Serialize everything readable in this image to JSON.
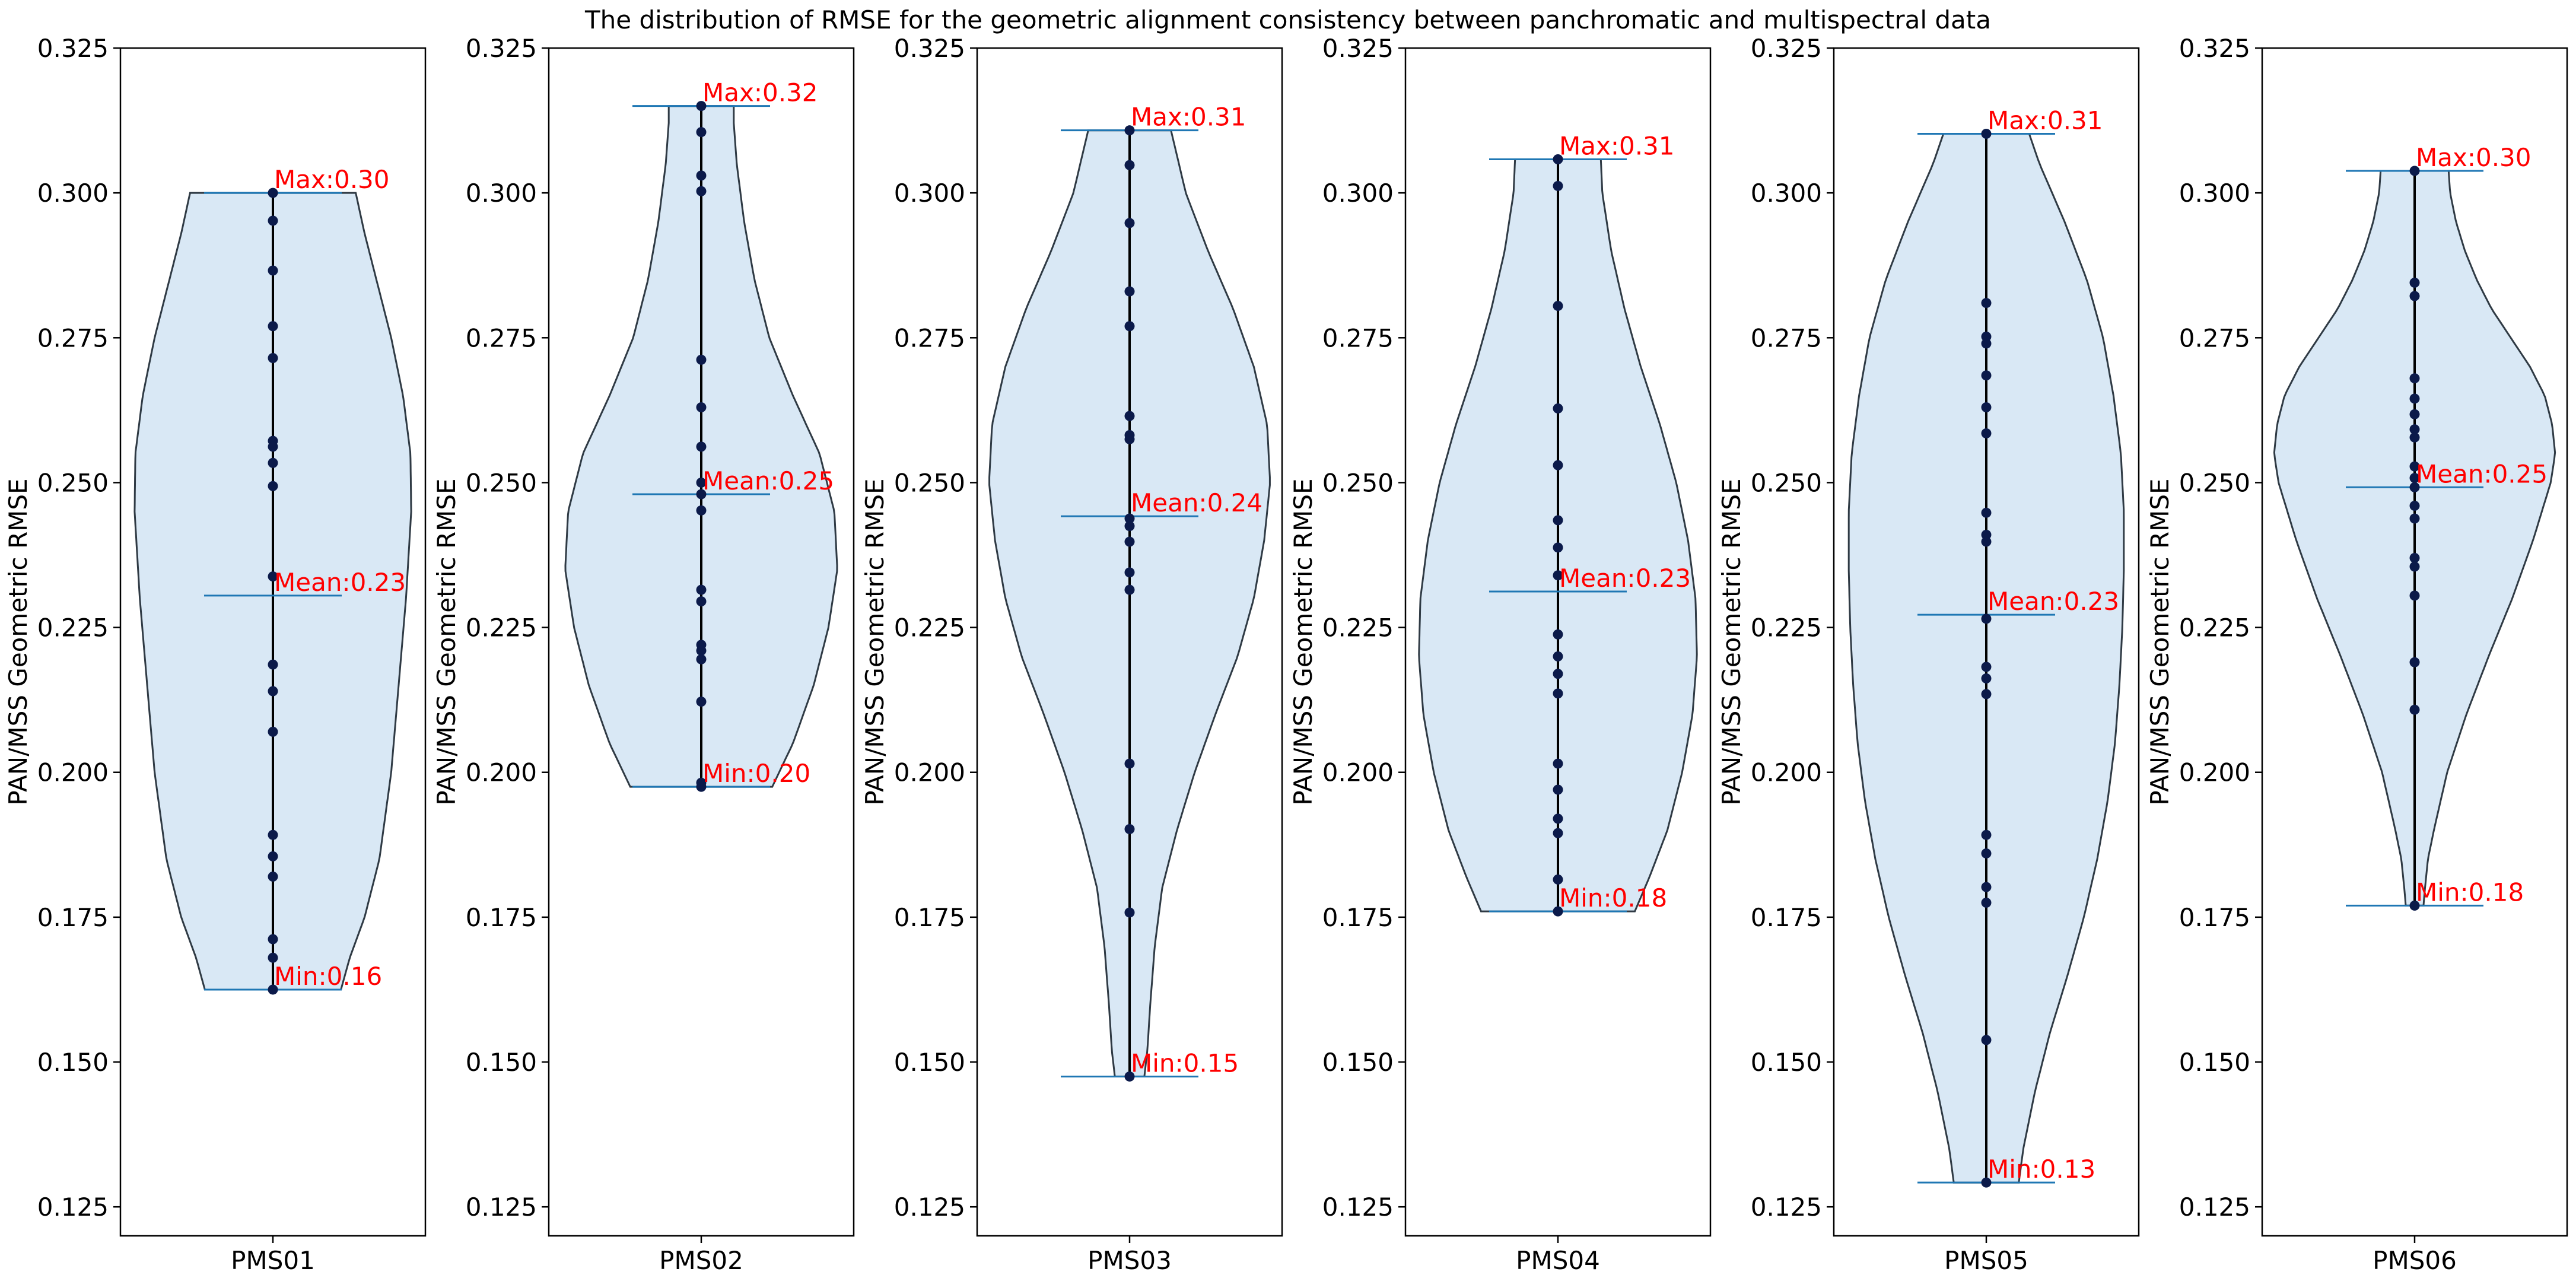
{
  "chart_data": {
    "type": "violin",
    "title": "The distribution of RMSE for the geometric alignment consistency between panchromatic and multispectral data",
    "ylabel": "PAN/MSS Geometric RMSE",
    "ylim": [
      0.12,
      0.325
    ],
    "yticks": [
      "0.125",
      "0.150",
      "0.175",
      "0.200",
      "0.225",
      "0.250",
      "0.275",
      "0.300",
      "0.325"
    ],
    "colors": {
      "fill": "#d9e8f5",
      "outline": "#2f3a44",
      "stats_line": "#1f77b4",
      "whisker": "#000000",
      "point": "#0b1a4a",
      "annotation": "#ff0000"
    },
    "panels": [
      {
        "name": "PMS01",
        "min": 0.1625,
        "mean": 0.2305,
        "max": 0.3,
        "min_label": "Min:0.16",
        "mean_label": "Mean:0.23",
        "max_label": "Max:0.30",
        "points": [
          0.3,
          0.2952,
          0.2866,
          0.277,
          0.2715,
          0.2572,
          0.2562,
          0.2534,
          0.2494,
          0.2338,
          0.2186,
          0.214,
          0.207,
          0.1892,
          0.1855,
          0.182,
          0.1712,
          0.168,
          0.1625
        ],
        "profile": [
          [
            0.1625,
            0.46
          ],
          [
            0.168,
            0.52
          ],
          [
            0.175,
            0.62
          ],
          [
            0.185,
            0.72
          ],
          [
            0.2,
            0.8
          ],
          [
            0.215,
            0.85
          ],
          [
            0.23,
            0.9
          ],
          [
            0.245,
            0.935
          ],
          [
            0.255,
            0.93
          ],
          [
            0.265,
            0.88
          ],
          [
            0.275,
            0.8
          ],
          [
            0.285,
            0.7
          ],
          [
            0.293,
            0.62
          ],
          [
            0.3,
            0.56
          ]
        ]
      },
      {
        "name": "PMS02",
        "min": 0.1975,
        "mean": 0.248,
        "max": 0.315,
        "min_label": "Min:0.20",
        "mean_label": "Mean:0.25",
        "max_label": "Max:0.32",
        "points": [
          0.315,
          0.3105,
          0.303,
          0.3003,
          0.2712,
          0.263,
          0.2562,
          0.25,
          0.248,
          0.2452,
          0.2315,
          0.2295,
          0.222,
          0.221,
          0.2195,
          0.2122,
          0.1982,
          0.1975
        ],
        "profile": [
          [
            0.1975,
            0.48
          ],
          [
            0.205,
            0.62
          ],
          [
            0.215,
            0.76
          ],
          [
            0.225,
            0.86
          ],
          [
            0.235,
            0.92
          ],
          [
            0.245,
            0.9
          ],
          [
            0.255,
            0.8
          ],
          [
            0.265,
            0.62
          ],
          [
            0.275,
            0.46
          ],
          [
            0.285,
            0.36
          ],
          [
            0.295,
            0.29
          ],
          [
            0.305,
            0.24
          ],
          [
            0.312,
            0.22
          ],
          [
            0.315,
            0.22
          ]
        ]
      },
      {
        "name": "PMS03",
        "min": 0.1475,
        "mean": 0.2442,
        "max": 0.3108,
        "min_label": "Min:0.15",
        "mean_label": "Mean:0.24",
        "max_label": "Max:0.31",
        "points": [
          0.3108,
          0.3048,
          0.2948,
          0.283,
          0.277,
          0.2615,
          0.2582,
          0.2575,
          0.2438,
          0.2425,
          0.2398,
          0.2345,
          0.2315,
          0.2015,
          0.1902,
          0.1758,
          0.1475
        ],
        "profile": [
          [
            0.1475,
            0.1
          ],
          [
            0.152,
            0.12
          ],
          [
            0.16,
            0.14
          ],
          [
            0.17,
            0.17
          ],
          [
            0.18,
            0.22
          ],
          [
            0.19,
            0.32
          ],
          [
            0.2,
            0.44
          ],
          [
            0.21,
            0.58
          ],
          [
            0.22,
            0.73
          ],
          [
            0.23,
            0.84
          ],
          [
            0.24,
            0.91
          ],
          [
            0.25,
            0.95
          ],
          [
            0.26,
            0.93
          ],
          [
            0.27,
            0.84
          ],
          [
            0.28,
            0.7
          ],
          [
            0.29,
            0.53
          ],
          [
            0.3,
            0.38
          ],
          [
            0.3108,
            0.28
          ]
        ]
      },
      {
        "name": "PMS04",
        "min": 0.176,
        "mean": 0.2312,
        "max": 0.3058,
        "min_label": "Min:0.18",
        "mean_label": "Mean:0.23",
        "max_label": "Max:0.31",
        "points": [
          0.3058,
          0.3012,
          0.2805,
          0.2628,
          0.253,
          0.2435,
          0.2388,
          0.234,
          0.2238,
          0.22,
          0.217,
          0.2136,
          0.2015,
          0.197,
          0.192,
          0.1895,
          0.1815,
          0.176
        ],
        "profile": [
          [
            0.176,
            0.52
          ],
          [
            0.182,
            0.62
          ],
          [
            0.19,
            0.74
          ],
          [
            0.2,
            0.84
          ],
          [
            0.21,
            0.91
          ],
          [
            0.22,
            0.94
          ],
          [
            0.23,
            0.93
          ],
          [
            0.24,
            0.88
          ],
          [
            0.25,
            0.8
          ],
          [
            0.26,
            0.69
          ],
          [
            0.27,
            0.56
          ],
          [
            0.28,
            0.45
          ],
          [
            0.29,
            0.36
          ],
          [
            0.3,
            0.3
          ],
          [
            0.3058,
            0.29
          ]
        ]
      },
      {
        "name": "PMS05",
        "min": 0.1292,
        "mean": 0.2272,
        "max": 0.3102,
        "min_label": "Min:0.13",
        "mean_label": "Mean:0.23",
        "max_label": "Max:0.31",
        "points": [
          0.3102,
          0.281,
          0.2752,
          0.274,
          0.2685,
          0.263,
          0.2585,
          0.2448,
          0.241,
          0.2398,
          0.2265,
          0.2182,
          0.2162,
          0.2135,
          0.1892,
          0.186,
          0.1802,
          0.1775,
          0.1538,
          0.1292
        ],
        "profile": [
          [
            0.1292,
            0.22
          ],
          [
            0.135,
            0.25
          ],
          [
            0.145,
            0.33
          ],
          [
            0.155,
            0.43
          ],
          [
            0.165,
            0.55
          ],
          [
            0.175,
            0.66
          ],
          [
            0.185,
            0.75
          ],
          [
            0.195,
            0.82
          ],
          [
            0.205,
            0.87
          ],
          [
            0.215,
            0.9
          ],
          [
            0.225,
            0.92
          ],
          [
            0.235,
            0.93
          ],
          [
            0.245,
            0.93
          ],
          [
            0.255,
            0.91
          ],
          [
            0.265,
            0.86
          ],
          [
            0.275,
            0.79
          ],
          [
            0.285,
            0.68
          ],
          [
            0.295,
            0.53
          ],
          [
            0.305,
            0.36
          ],
          [
            0.3102,
            0.29
          ]
        ]
      },
      {
        "name": "PMS06",
        "min": 0.177,
        "mean": 0.2492,
        "max": 0.3038,
        "min_label": "Min:0.18",
        "mean_label": "Mean:0.25",
        "max_label": "Max:0.30",
        "points": [
          0.3038,
          0.2845,
          0.2822,
          0.268,
          0.2645,
          0.2618,
          0.2592,
          0.2578,
          0.2528,
          0.2508,
          0.2492,
          0.246,
          0.2438,
          0.237,
          0.2355,
          0.2305,
          0.219,
          0.2108,
          0.177
        ],
        "profile": [
          [
            0.177,
            0.06
          ],
          [
            0.18,
            0.07
          ],
          [
            0.185,
            0.09
          ],
          [
            0.19,
            0.13
          ],
          [
            0.2,
            0.22
          ],
          [
            0.21,
            0.35
          ],
          [
            0.22,
            0.5
          ],
          [
            0.23,
            0.66
          ],
          [
            0.24,
            0.8
          ],
          [
            0.25,
            0.92
          ],
          [
            0.255,
            0.95
          ],
          [
            0.26,
            0.93
          ],
          [
            0.265,
            0.88
          ],
          [
            0.27,
            0.78
          ],
          [
            0.275,
            0.65
          ],
          [
            0.28,
            0.52
          ],
          [
            0.285,
            0.42
          ],
          [
            0.29,
            0.34
          ],
          [
            0.295,
            0.28
          ],
          [
            0.3,
            0.24
          ],
          [
            0.3038,
            0.23
          ]
        ]
      }
    ]
  }
}
